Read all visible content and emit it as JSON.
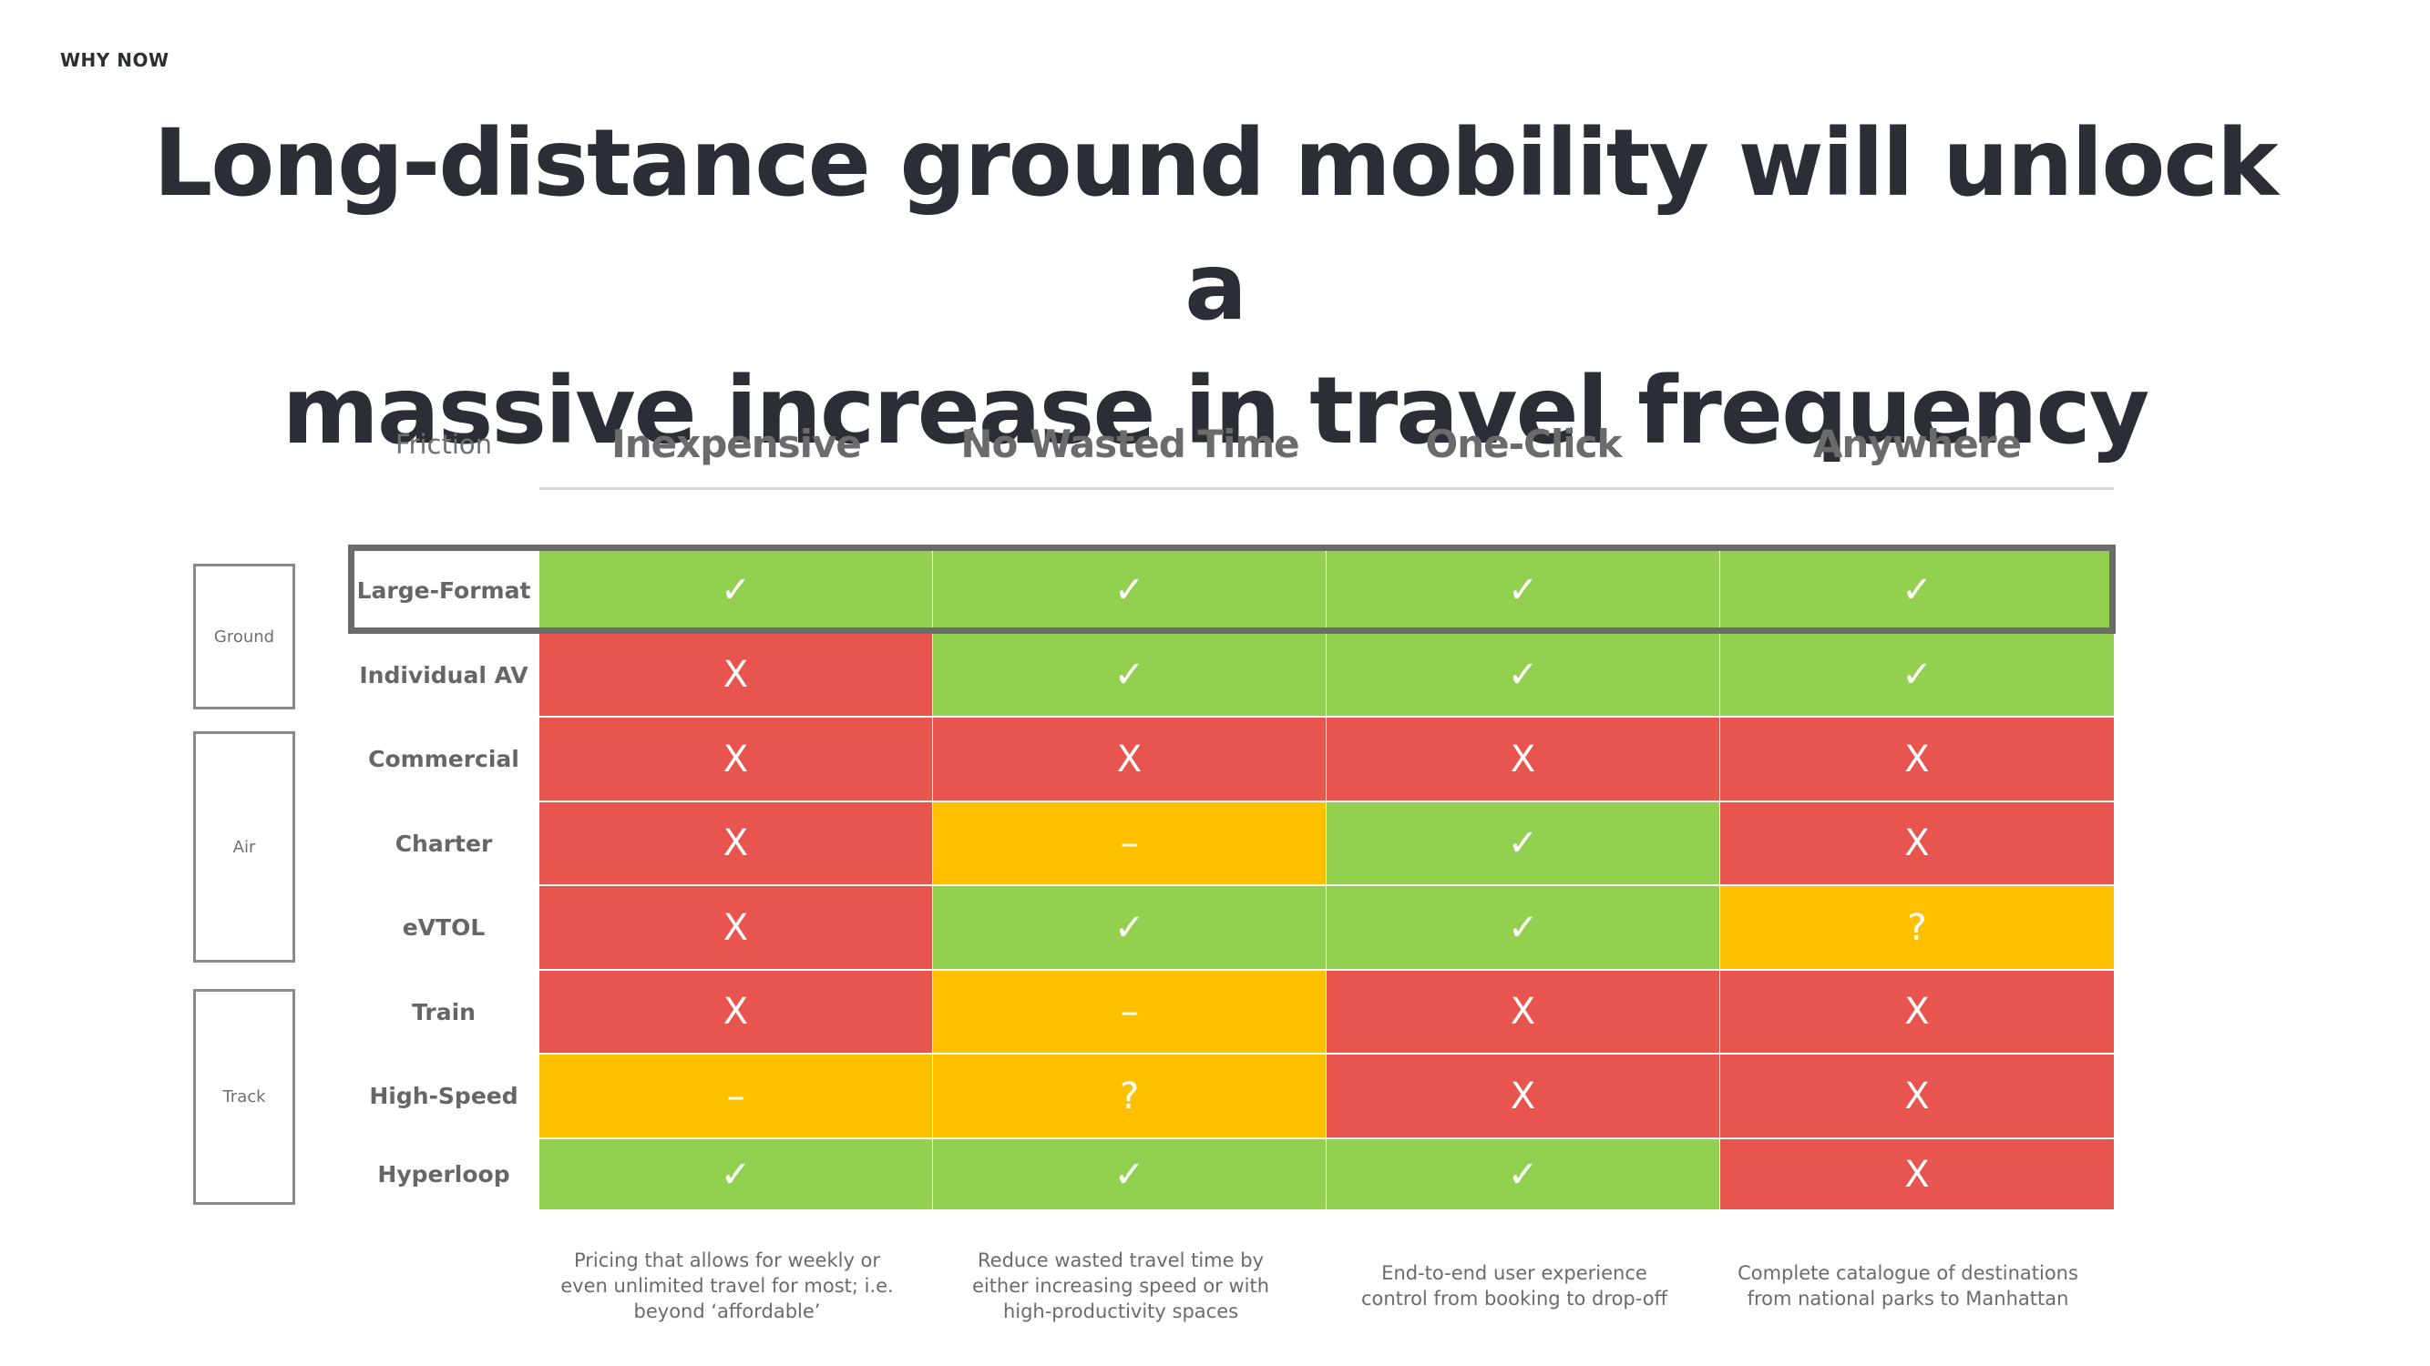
{
  "eyebrow": "WHY NOW",
  "headline": {
    "line1": "Long-distance ground mobility will unlock a",
    "line2": "massive increase in travel frequency"
  },
  "table": {
    "friction_label": "Friction",
    "columns": [
      "Inexpensive",
      "No Wasted Time",
      "One-Click",
      "Anywhere"
    ],
    "groups": [
      {
        "label": "Ground",
        "rows": [
          0,
          1
        ]
      },
      {
        "label": "Air",
        "rows": [
          2,
          3,
          4
        ]
      },
      {
        "label": "Track",
        "rows": [
          5,
          6,
          7
        ]
      }
    ],
    "rows": [
      {
        "label": "Large-Format",
        "highlighted": true,
        "cells": [
          {
            "mark": "✓",
            "status": "green"
          },
          {
            "mark": "✓",
            "status": "green"
          },
          {
            "mark": "✓",
            "status": "green"
          },
          {
            "mark": "✓",
            "status": "green"
          }
        ]
      },
      {
        "label": "Individual AV",
        "cells": [
          {
            "mark": "X",
            "status": "red"
          },
          {
            "mark": "✓",
            "status": "green"
          },
          {
            "mark": "✓",
            "status": "green"
          },
          {
            "mark": "✓",
            "status": "green"
          }
        ]
      },
      {
        "label": "Commercial",
        "cells": [
          {
            "mark": "X",
            "status": "red"
          },
          {
            "mark": "X",
            "status": "red"
          },
          {
            "mark": "X",
            "status": "red"
          },
          {
            "mark": "X",
            "status": "red"
          }
        ]
      },
      {
        "label": "Charter",
        "cells": [
          {
            "mark": "X",
            "status": "red"
          },
          {
            "mark": "–",
            "status": "amber"
          },
          {
            "mark": "✓",
            "status": "green"
          },
          {
            "mark": "X",
            "status": "red"
          }
        ]
      },
      {
        "label": "eVTOL",
        "cells": [
          {
            "mark": "X",
            "status": "red"
          },
          {
            "mark": "✓",
            "status": "green"
          },
          {
            "mark": "✓",
            "status": "green"
          },
          {
            "mark": "?",
            "status": "amber"
          }
        ]
      },
      {
        "label": "Train",
        "cells": [
          {
            "mark": "X",
            "status": "red"
          },
          {
            "mark": "–",
            "status": "amber"
          },
          {
            "mark": "X",
            "status": "red"
          },
          {
            "mark": "X",
            "status": "red"
          }
        ]
      },
      {
        "label": "High-Speed",
        "cells": [
          {
            "mark": "–",
            "status": "amber"
          },
          {
            "mark": "?",
            "status": "amber"
          },
          {
            "mark": "X",
            "status": "red"
          },
          {
            "mark": "X",
            "status": "red"
          }
        ]
      },
      {
        "label": "Hyperloop",
        "cells": [
          {
            "mark": "✓",
            "status": "green"
          },
          {
            "mark": "✓",
            "status": "green"
          },
          {
            "mark": "✓",
            "status": "green"
          },
          {
            "mark": "X",
            "status": "red"
          }
        ]
      }
    ],
    "footnotes": [
      [
        "Pricing that allows for weekly or",
        "even unlimited travel for most; i.e.",
        "beyond ‘affordable’"
      ],
      [
        "Reduce wasted travel time by",
        "either increasing speed or with",
        "high-productivity spaces"
      ],
      [
        "End-to-end  user experience",
        "control from booking to drop-off"
      ],
      [
        "Complete catalogue of destinations",
        "from national parks to Manhattan"
      ]
    ]
  },
  "colors": {
    "green": "#92d050",
    "red": "#e8544e",
    "amber": "#ffc000",
    "highlight_frame": "#6b6b6b",
    "headline": "#2b2e35"
  }
}
